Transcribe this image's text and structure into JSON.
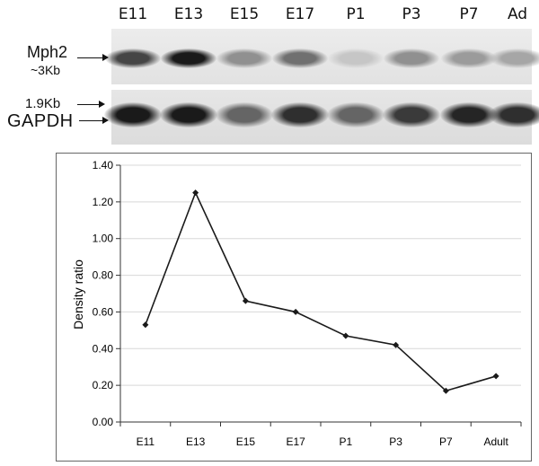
{
  "blot": {
    "lanes": [
      "E11",
      "E13",
      "E15",
      "E17",
      "P1",
      "P3",
      "P7",
      "Ad"
    ],
    "top_label_line1": "Mph2",
    "top_label_line2": "~3Kb",
    "bottom_label_marker": "1.9Kb",
    "bottom_label_gene": "GAPDH",
    "mph2_intensity": [
      0.75,
      0.95,
      0.4,
      0.55,
      0.15,
      0.4,
      0.35,
      0.3
    ],
    "gapdh_intensity": [
      0.95,
      0.95,
      0.6,
      0.85,
      0.6,
      0.8,
      0.9,
      0.85
    ]
  },
  "chart_data": {
    "type": "line",
    "categories": [
      "E11",
      "E13",
      "E15",
      "E17",
      "P1",
      "P3",
      "P7",
      "Adult"
    ],
    "series": [
      {
        "values": [
          0.53,
          1.25,
          0.66,
          0.6,
          0.47,
          0.42,
          0.17,
          0.25
        ]
      }
    ],
    "ylabel": "Density ratio",
    "xlabel": "",
    "ylim": [
      0,
      1.4
    ],
    "yticks": [
      "0.00",
      "0.20",
      "0.40",
      "0.60",
      "0.80",
      "1.00",
      "1.20",
      "1.40"
    ],
    "grid": true,
    "line_color": "#1a1a1a"
  }
}
